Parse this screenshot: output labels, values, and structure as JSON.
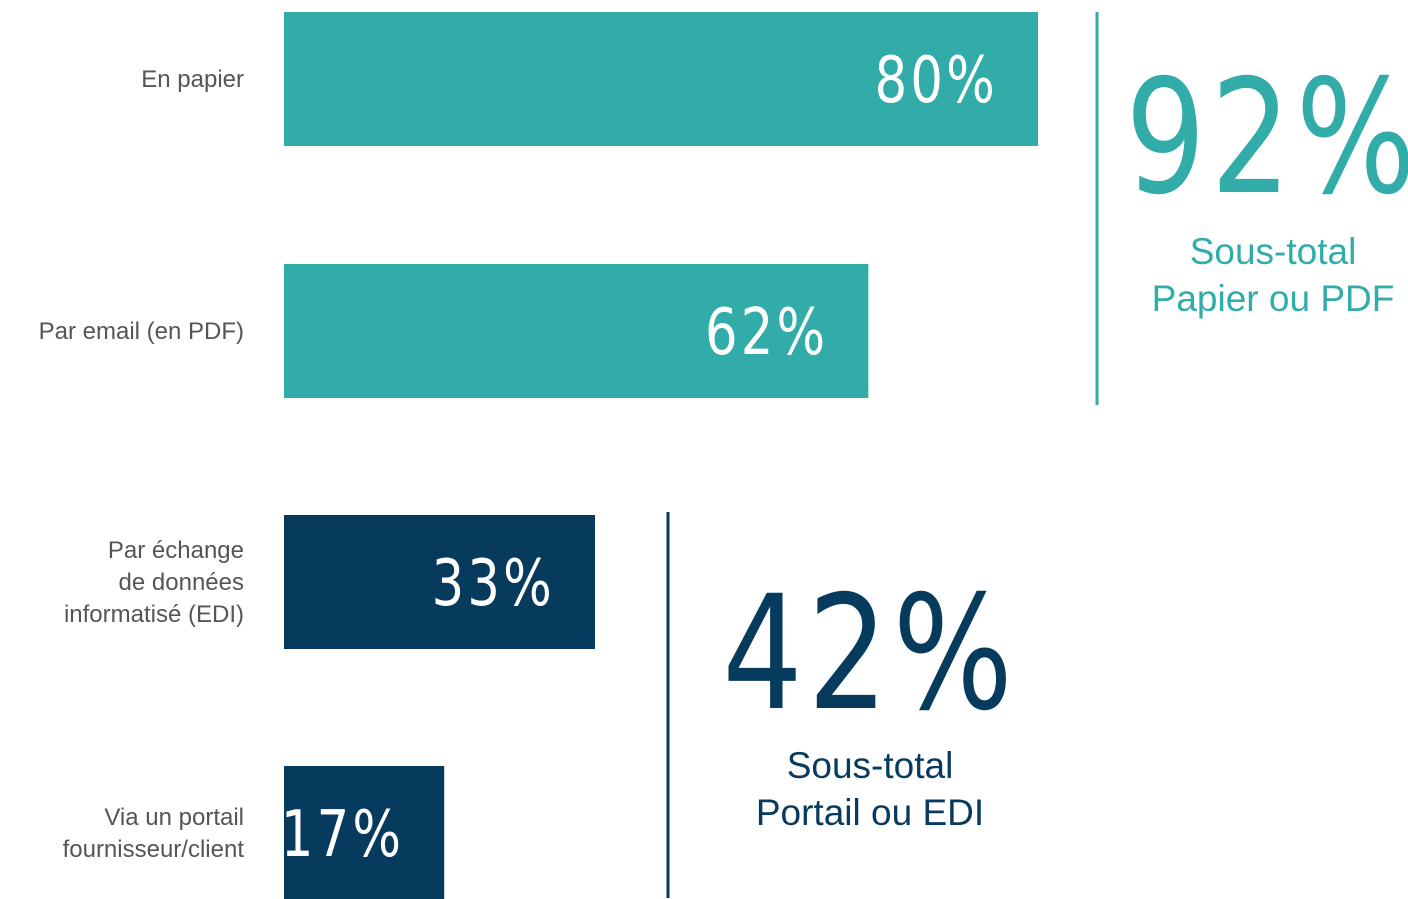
{
  "chart_data": {
    "type": "bar",
    "categories": [
      [
        "En papier"
      ],
      [
        "Par email (en PDF)"
      ],
      [
        "Par échange",
        "de données",
        "informatisé (EDI)"
      ],
      [
        "Via un portail",
        "fournisseur/client"
      ]
    ],
    "values": [
      80,
      62,
      33,
      17
    ],
    "value_labels": [
      "80%",
      "62%",
      "33%",
      "17%"
    ],
    "colors": [
      "#31aca9",
      "#31aca9",
      "#073b5e",
      "#073b5e"
    ],
    "annotations": [
      {
        "label": "92%",
        "text": [
          "Sous-total",
          "Papier ou PDF"
        ],
        "color": "#31aca9"
      },
      {
        "label": "42%",
        "text": [
          "Sous-total",
          "Portail ou EDI"
        ],
        "color": "#073b5e"
      }
    ]
  }
}
